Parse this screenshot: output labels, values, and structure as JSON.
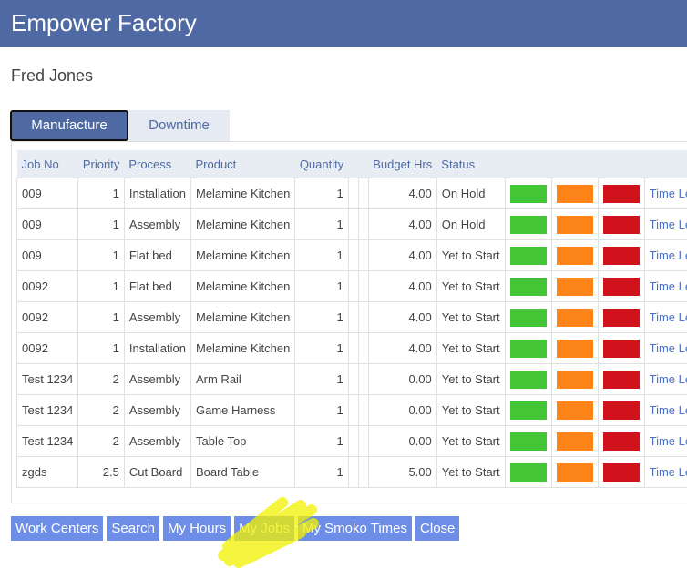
{
  "header": {
    "title": "Empower Factory"
  },
  "user": "Fred Jones",
  "tabs": [
    "Manufacture",
    "Downtime"
  ],
  "table": {
    "columns": [
      "Job No",
      "Priority",
      "Process",
      "Product",
      "Quantity",
      "Budget Hrs",
      "Status"
    ],
    "rows": [
      [
        "009",
        "1",
        "Installation",
        "Melamine Kitchen",
        "1",
        "4.00",
        "On Hold",
        "Time Left"
      ],
      [
        "009",
        "1",
        "Assembly",
        "Melamine Kitchen",
        "1",
        "4.00",
        "On Hold",
        "Time Left"
      ],
      [
        "009",
        "1",
        "Flat bed",
        "Melamine Kitchen",
        "1",
        "4.00",
        "Yet to Start",
        "Time Left"
      ],
      [
        "0092",
        "1",
        "Flat bed",
        "Melamine Kitchen",
        "1",
        "4.00",
        "Yet to Start",
        "Time Left"
      ],
      [
        "0092",
        "1",
        "Assembly",
        "Melamine Kitchen",
        "1",
        "4.00",
        "Yet to Start",
        "Time Left"
      ],
      [
        "0092",
        "1",
        "Installation",
        "Melamine Kitchen",
        "1",
        "4.00",
        "Yet to Start",
        "Time Left"
      ],
      [
        "Test 1234",
        "2",
        "Assembly",
        "Arm Rail",
        "1",
        "0.00",
        "Yet to Start",
        "Time Left"
      ],
      [
        "Test 1234",
        "2",
        "Assembly",
        "Game Harness",
        "1",
        "0.00",
        "Yet to Start",
        "Time Left"
      ],
      [
        "Test 1234",
        "2",
        "Assembly",
        "Table Top",
        "1",
        "0.00",
        "Yet to Start",
        "Time Left"
      ],
      [
        "zgds",
        "2.5",
        "Cut Board",
        "Board Table",
        "1",
        "5.00",
        "Yet to Start",
        "Time Left"
      ]
    ]
  },
  "buttons": [
    "Work Centers",
    "Search",
    "My Hours",
    "My Jobs",
    "My Smoko Times",
    "Close"
  ]
}
